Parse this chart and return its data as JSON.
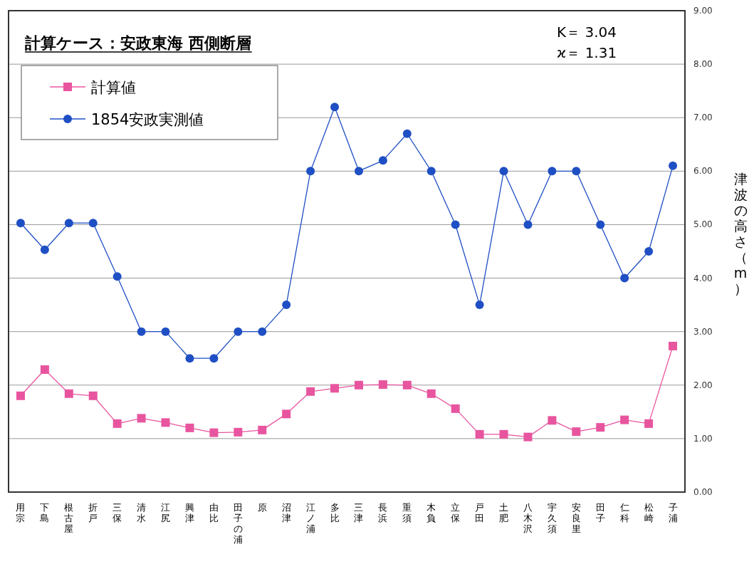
{
  "chart_data": {
    "type": "line",
    "title": "計算ケース：安政東海 西側断層",
    "ylabel": "津波の高さ（m）",
    "annotations": [
      "K＝ 3.04",
      "ϰ＝ 1.31"
    ],
    "categories": [
      "用宗",
      "下島",
      "根古屋",
      "折戸",
      "三保",
      "清水",
      "江尻",
      "興津",
      "由比",
      "田子の浦",
      "原",
      "沼津",
      "江ノ浦",
      "多比",
      "三津",
      "長浜",
      "重須",
      "木負",
      "立保",
      "戸田",
      "土肥",
      "八木沢",
      "宇久須",
      "安良里",
      "田子",
      "仁科",
      "松崎",
      "子浦"
    ],
    "series": [
      {
        "name": "計算値",
        "color": "#e8559f",
        "marker": "square",
        "values": [
          1.8,
          2.29,
          1.84,
          1.8,
          1.28,
          1.38,
          1.3,
          1.2,
          1.11,
          1.12,
          1.16,
          1.46,
          1.88,
          1.94,
          2.0,
          2.01,
          2.0,
          1.84,
          1.56,
          1.08,
          1.08,
          1.03,
          1.34,
          1.13,
          1.21,
          1.35,
          1.28,
          2.73
        ]
      },
      {
        "name": "1854安政実測値",
        "color": "#1f4fc4",
        "marker": "circle",
        "values": [
          5.03,
          4.53,
          5.03,
          5.03,
          4.03,
          3.0,
          3.0,
          2.5,
          2.5,
          3.0,
          3.0,
          3.5,
          6.0,
          7.2,
          6.0,
          6.2,
          6.7,
          6.0,
          5.0,
          3.5,
          6.0,
          5.0,
          6.0,
          6.0,
          5.0,
          4.0,
          4.5,
          6.1
        ]
      }
    ],
    "ylim": [
      0,
      9
    ],
    "yticks": [
      {
        "value": 0,
        "label": "0.00"
      },
      {
        "value": 1,
        "label": "1.00"
      },
      {
        "value": 2,
        "label": "2.00"
      },
      {
        "value": 3,
        "label": "3.00"
      },
      {
        "value": 4,
        "label": "4.00"
      },
      {
        "value": 5,
        "label": "5.00"
      },
      {
        "value": 6,
        "label": "6.00"
      },
      {
        "value": 7,
        "label": "7.00"
      },
      {
        "value": 8,
        "label": "8.00"
      },
      {
        "value": 9,
        "label": "9.00"
      }
    ],
    "grid": "y",
    "legend": "top left",
    "line_style": "solid"
  }
}
